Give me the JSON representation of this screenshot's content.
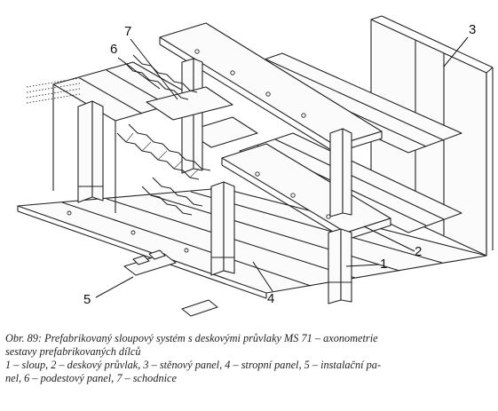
{
  "labels": {
    "l1": "1",
    "l2": "2",
    "l3": "3",
    "l4": "4",
    "l5": "5",
    "l6": "6",
    "l7": "7"
  },
  "caption": {
    "line1": "Obr. 89: Prefabrikovaný sloupový systém s deskovými průvlaky MS 71 – axonometrie",
    "line2": "sestavy prefabrikovaných dílců",
    "line3": "1 – sloup, 2 – deskový průvlak, 3 – stěnový panel, 4 – stropní panel, 5 – instalační pa-",
    "line4": "nel, 6 – podestový panel, 7 – schodnice"
  }
}
